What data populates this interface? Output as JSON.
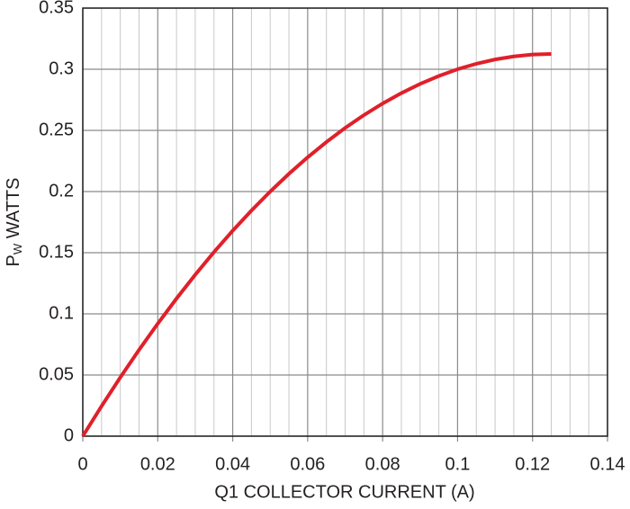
{
  "chart_data": {
    "type": "line",
    "xlabel": "Q1 COLLECTOR CURRENT (A)",
    "ylabel_parts": [
      "P",
      "W",
      " WATTS"
    ],
    "x": [
      0,
      0.005,
      0.01,
      0.015,
      0.02,
      0.025,
      0.03,
      0.035,
      0.04,
      0.045,
      0.05,
      0.055,
      0.06,
      0.065,
      0.07,
      0.075,
      0.08,
      0.085,
      0.09,
      0.095,
      0.1,
      0.105,
      0.11,
      0.115,
      0.12,
      0.125
    ],
    "series": [
      {
        "color": "#e0202a",
        "values": [
          0,
          0.0245,
          0.048,
          0.0705,
          0.092,
          0.1125,
          0.132,
          0.1505,
          0.168,
          0.1845,
          0.2,
          0.2145,
          0.228,
          0.2405,
          0.252,
          0.2625,
          0.272,
          0.2805,
          0.288,
          0.2945,
          0.3,
          0.3045,
          0.308,
          0.3105,
          0.312,
          0.3125
        ]
      }
    ],
    "xlim": [
      0,
      0.14
    ],
    "ylim": [
      0,
      0.35
    ],
    "xticks": [
      0,
      0.02,
      0.04,
      0.06,
      0.08,
      0.1,
      0.12,
      0.14
    ],
    "yticks": [
      0,
      0.05,
      0.1,
      0.15,
      0.2,
      0.25,
      0.3,
      0.35
    ],
    "xminor": [
      0.005,
      0.01,
      0.015,
      0.025,
      0.03,
      0.035,
      0.045,
      0.05,
      0.055,
      0.065,
      0.07,
      0.075,
      0.085,
      0.09,
      0.095,
      0.105,
      0.11,
      0.115,
      0.125,
      0.13,
      0.135
    ],
    "grid": true
  }
}
